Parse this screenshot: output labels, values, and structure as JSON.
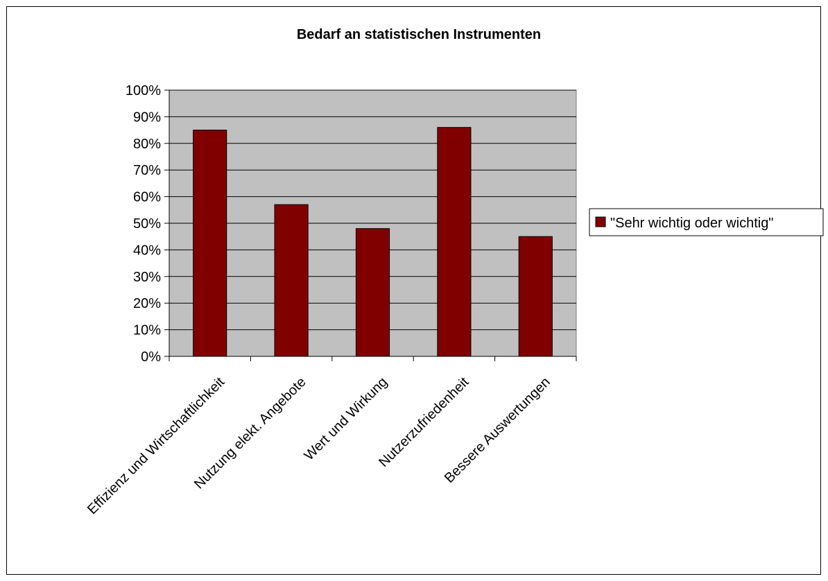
{
  "chart_data": {
    "type": "bar",
    "title": "Bedarf an statistischen Instrumenten",
    "categories": [
      "Effizienz und Wirtschaftlichkeit",
      "Nutzung elekt. Angebote",
      "Wert und Wirkung",
      "Nutzerzufriedenheit",
      "Bessere Auswertungen"
    ],
    "series": [
      {
        "name": "\"Sehr wichtig oder wichtig\"",
        "values": [
          85,
          57,
          48,
          86,
          45
        ],
        "color": "#800000"
      }
    ],
    "yticks": [
      "0%",
      "10%",
      "20%",
      "30%",
      "40%",
      "50%",
      "60%",
      "70%",
      "80%",
      "90%",
      "100%"
    ],
    "ylim": [
      0,
      100
    ],
    "grid": true,
    "legend_position": "right",
    "plot_background": "#c0c0c0"
  }
}
